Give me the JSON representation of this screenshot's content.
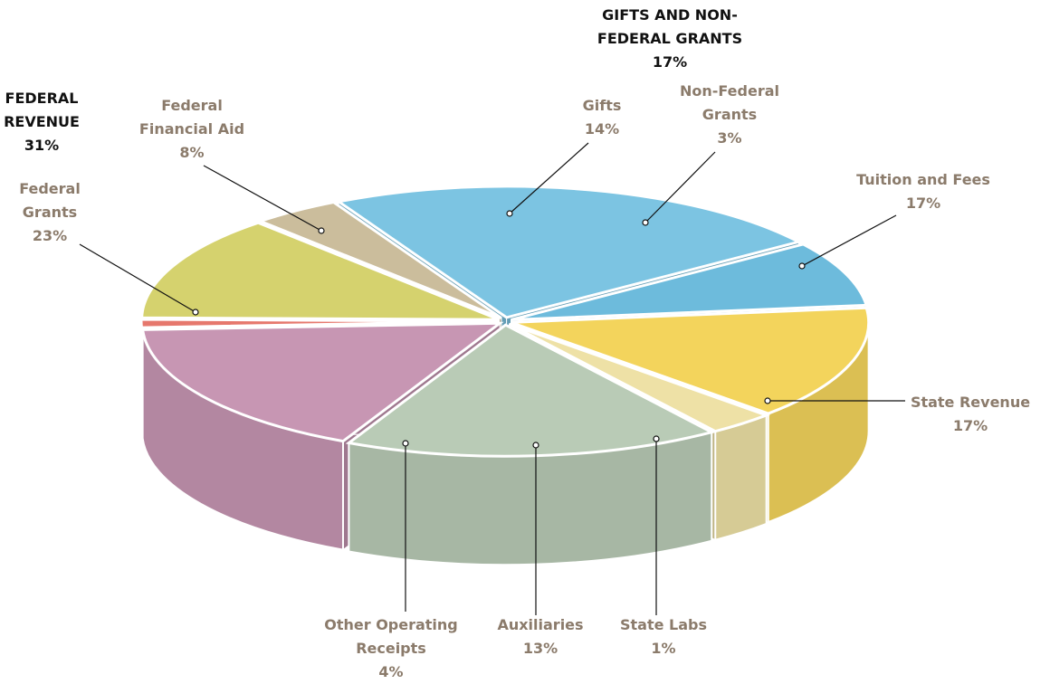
{
  "chart_data": {
    "type": "pie",
    "categories": [
      "Federal Grants",
      "Federal Financial Aid",
      "Gifts",
      "Non-Federal Grants",
      "Tuition and Fees",
      "State Revenue",
      "State Labs",
      "Auxiliaries",
      "Other Operating Receipts"
    ],
    "values": [
      23,
      8,
      14,
      3,
      17,
      17,
      1,
      13,
      4
    ],
    "value_labels": [
      "23%",
      "8%",
      "14%",
      "3%",
      "17%",
      "17%",
      "1%",
      "13%",
      "4%"
    ],
    "colors": [
      "#7cc4e2",
      "#6dbbdc",
      "#f3d45c",
      "#eee1a6",
      "#b9cbb6",
      "#c796b3",
      "#e6786d",
      "#d5d26e",
      "#cbbd9c"
    ],
    "groups": [
      {
        "name": "FEDERAL REVENUE",
        "value": 31,
        "value_label": "31%"
      },
      {
        "name": "GIFTS AND NON-FEDERAL GRANTS",
        "value": 17,
        "value_label": "17%"
      }
    ]
  }
}
